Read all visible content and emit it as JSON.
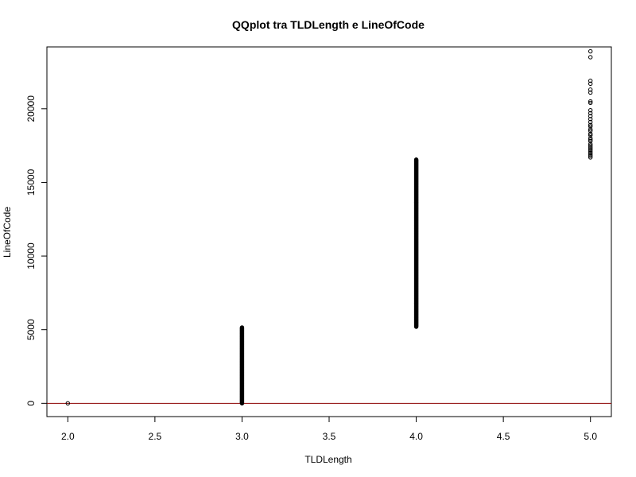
{
  "chart_data": {
    "type": "scatter",
    "title": "QQplot tra TLDLength e LineOfCode",
    "xlabel": "TLDLength",
    "ylabel": "LineOfCode",
    "xlim": [
      1.88,
      5.12
    ],
    "ylim": [
      -900,
      24200
    ],
    "x_ticks": [
      2.0,
      2.5,
      3.0,
      3.5,
      4.0,
      4.5,
      5.0
    ],
    "x_tick_labels": [
      "2.0",
      "2.5",
      "3.0",
      "3.5",
      "4.0",
      "4.5",
      "5.0"
    ],
    "y_ticks": [
      0,
      5000,
      10000,
      15000,
      20000
    ],
    "y_tick_labels": [
      "0",
      "5000",
      "10000",
      "15000",
      "20000"
    ],
    "grid": false,
    "reference_line": {
      "type": "horizontal",
      "y": 0,
      "color": "#8b0000"
    },
    "series": [
      {
        "marker": "open-circle",
        "color": "#000000",
        "groups": [
          {
            "x": 2.0,
            "y_min": 0,
            "y_max": 0
          },
          {
            "x": 3.0,
            "y_min": 0,
            "y_max": 5150
          },
          {
            "x": 4.0,
            "y_min": 5200,
            "y_max": 16550
          }
        ],
        "points": [
          [
            5.0,
            23900
          ],
          [
            5.0,
            23500
          ],
          [
            5.0,
            21900
          ],
          [
            5.0,
            21700
          ],
          [
            5.0,
            21300
          ],
          [
            5.0,
            21100
          ],
          [
            5.0,
            20500
          ],
          [
            5.0,
            20400
          ],
          [
            5.0,
            19900
          ],
          [
            5.0,
            19700
          ],
          [
            5.0,
            19500
          ],
          [
            5.0,
            19300
          ],
          [
            5.0,
            19100
          ],
          [
            5.0,
            18900
          ],
          [
            5.0,
            18800
          ],
          [
            5.0,
            18600
          ],
          [
            5.0,
            18500
          ],
          [
            5.0,
            18300
          ],
          [
            5.0,
            18200
          ],
          [
            5.0,
            18000
          ],
          [
            5.0,
            17900
          ],
          [
            5.0,
            17800
          ],
          [
            5.0,
            17600
          ],
          [
            5.0,
            17500
          ],
          [
            5.0,
            17400
          ],
          [
            5.0,
            17300
          ],
          [
            5.0,
            17200
          ],
          [
            5.0,
            17100
          ],
          [
            5.0,
            17000
          ],
          [
            5.0,
            16900
          ],
          [
            5.0,
            16800
          ],
          [
            5.0,
            16700
          ]
        ]
      }
    ]
  }
}
